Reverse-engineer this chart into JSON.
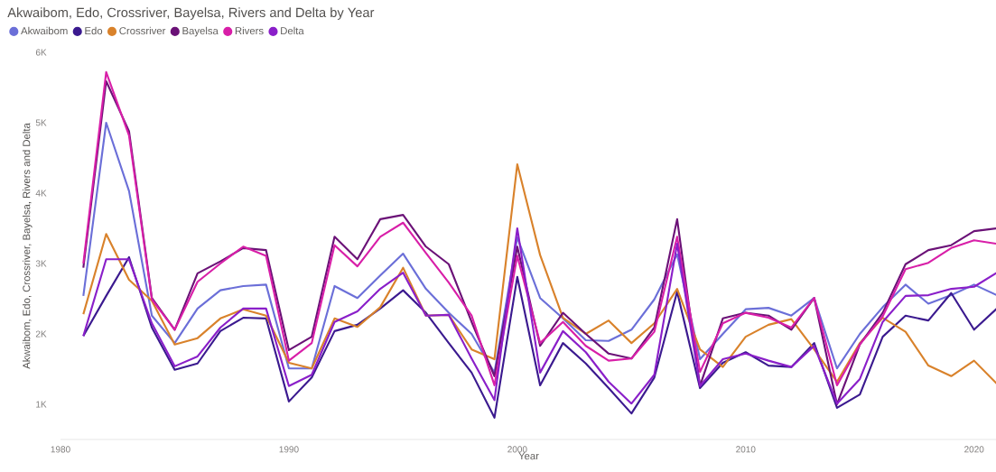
{
  "chart_data": {
    "type": "line",
    "title": "Akwaibom, Edo, Crossriver, Bayelsa, Rivers and Delta by Year",
    "xlabel": "Year",
    "ylabel": "Akwaibom, Edo, Crossriver, Bayelsa, Rivers and Delta",
    "x": [
      1981,
      1982,
      1983,
      1984,
      1985,
      1986,
      1987,
      1988,
      1989,
      1990,
      1991,
      1992,
      1993,
      1994,
      1995,
      1996,
      1997,
      1998,
      1999,
      2000,
      2001,
      2002,
      2003,
      2004,
      2005,
      2006,
      2007,
      2008,
      2009,
      2010,
      2011,
      2012,
      2013,
      2014,
      2015,
      2016,
      2017,
      2018,
      2019,
      2020,
      2021
    ],
    "series": [
      {
        "name": "Akwaibom",
        "color": "#6b6fd8",
        "values": [
          2540,
          5000,
          4030,
          2260,
          1870,
          2360,
          2620,
          2680,
          2700,
          1510,
          1510,
          2680,
          2510,
          2830,
          3140,
          2640,
          2300,
          2000,
          1450,
          3370,
          2510,
          2220,
          1910,
          1900,
          2060,
          2490,
          3130,
          1640,
          2000,
          2350,
          2370,
          2260,
          2510,
          1510,
          2000,
          2380,
          2700,
          2430,
          2550,
          2700,
          2550
        ]
      },
      {
        "name": "Edo",
        "color": "#3b1a8f",
        "values": [
          1970,
          2540,
          3090,
          2090,
          1490,
          1580,
          2040,
          2230,
          2220,
          1040,
          1380,
          2040,
          2130,
          2360,
          2620,
          2300,
          1870,
          1450,
          810,
          2810,
          1270,
          1870,
          1580,
          1230,
          870,
          1380,
          2600,
          1230,
          1590,
          1740,
          1550,
          1530,
          1870,
          950,
          1140,
          1960,
          2260,
          2190,
          2580,
          2060,
          2360
        ]
      },
      {
        "name": "Crossriver",
        "color": "#d9822b",
        "values": [
          2280,
          3420,
          2770,
          2470,
          1850,
          1940,
          2220,
          2350,
          2260,
          1590,
          1510,
          2220,
          2100,
          2380,
          2940,
          2260,
          2270,
          1780,
          1640,
          4410,
          3120,
          2230,
          2000,
          2190,
          1870,
          2150,
          2640,
          1780,
          1530,
          1960,
          2130,
          2210,
          1780,
          1320,
          1870,
          2230,
          2030,
          1550,
          1400,
          1620,
          1290
        ]
      },
      {
        "name": "Bayelsa",
        "color": "#6b1277",
        "values": [
          2940,
          5590,
          4880,
          2510,
          2060,
          2860,
          3030,
          3220,
          3190,
          1770,
          1960,
          3380,
          3060,
          3630,
          3690,
          3240,
          2990,
          2170,
          1400,
          3240,
          1830,
          2300,
          2000,
          1720,
          1650,
          2090,
          3630,
          1260,
          2220,
          2300,
          2260,
          2060,
          2510,
          1000,
          1850,
          2300,
          2990,
          3190,
          3260,
          3460,
          3500
        ]
      },
      {
        "name": "Rivers",
        "color": "#d81fa8",
        "values": [
          3000,
          5720,
          4820,
          2490,
          2060,
          2740,
          3000,
          3240,
          3110,
          1620,
          1870,
          3260,
          2960,
          3380,
          3580,
          3150,
          2730,
          2260,
          1270,
          3110,
          1870,
          2170,
          1830,
          1620,
          1650,
          2030,
          3380,
          1460,
          2150,
          2300,
          2230,
          2090,
          2510,
          1270,
          1850,
          2250,
          2920,
          3010,
          3220,
          3330,
          3280
        ]
      },
      {
        "name": "Delta",
        "color": "#8a1fc9",
        "values": [
          1970,
          3060,
          3060,
          2150,
          1540,
          1680,
          2090,
          2360,
          2360,
          1260,
          1420,
          2170,
          2320,
          2640,
          2870,
          2260,
          2270,
          1650,
          1060,
          3500,
          1450,
          2040,
          1740,
          1320,
          1010,
          1420,
          3280,
          1260,
          1640,
          1720,
          1620,
          1530,
          1830,
          1010,
          1360,
          2170,
          2540,
          2550,
          2640,
          2670,
          2870
        ]
      }
    ],
    "xlim": [
      1980,
      2021
    ],
    "ylim": [
      500,
      6000
    ],
    "xticks": [
      1980,
      1990,
      2000,
      2010,
      2020
    ],
    "yticks": [
      {
        "value": 1000,
        "label": "1K"
      },
      {
        "value": 2000,
        "label": "2K"
      },
      {
        "value": 3000,
        "label": "3K"
      },
      {
        "value": 4000,
        "label": "4K"
      },
      {
        "value": 5000,
        "label": "5K"
      },
      {
        "value": 6000,
        "label": "6K"
      }
    ],
    "legend": "top left",
    "marker": "none",
    "line_style": "solid"
  }
}
